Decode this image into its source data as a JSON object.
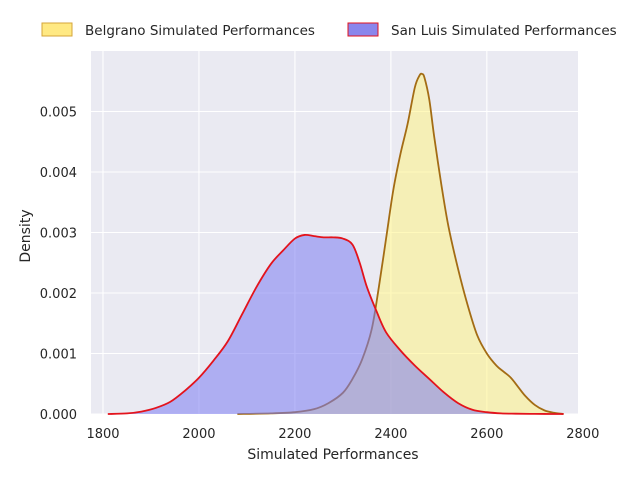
{
  "chart_data": {
    "type": "area",
    "title": "",
    "xlabel": "Simulated Performances",
    "ylabel": "Density",
    "xlim": [
      1775,
      2790
    ],
    "ylim": [
      0,
      0.006
    ],
    "xticks": [
      1800,
      2000,
      2200,
      2400,
      2600,
      2800
    ],
    "yticks": [
      0.0,
      0.001,
      0.002,
      0.003,
      0.004,
      0.005
    ],
    "ytick_labels": [
      "0.000",
      "0.001",
      "0.002",
      "0.003",
      "0.004",
      "0.005"
    ],
    "grid": true,
    "background": "#eaeaf2",
    "legend_position": "top",
    "series": [
      {
        "name": "Belgrano Simulated Performances",
        "fill_color": "#fff37a",
        "fill_opacity": 0.5,
        "line_color": "#a36c14",
        "legend_fill": "#ffe983",
        "legend_edge": "#d4a53a",
        "x": [
          2080,
          2150,
          2200,
          2240,
          2270,
          2300,
          2320,
          2340,
          2360,
          2375,
          2390,
          2405,
          2420,
          2435,
          2450,
          2460,
          2465,
          2470,
          2480,
          2490,
          2505,
          2520,
          2540,
          2560,
          2580,
          2600,
          2620,
          2635,
          2650,
          2665,
          2680,
          2700,
          2720,
          2740,
          2760
        ],
        "y": [
          0,
          1e-05,
          3e-05,
          8e-05,
          0.00018,
          0.00035,
          0.00058,
          0.0009,
          0.0014,
          0.0021,
          0.0029,
          0.0037,
          0.0043,
          0.0048,
          0.0054,
          0.0056,
          0.00562,
          0.00556,
          0.0052,
          0.0046,
          0.0038,
          0.0031,
          0.0024,
          0.0018,
          0.0013,
          0.001,
          0.0008,
          0.0007,
          0.0006,
          0.00045,
          0.0003,
          0.00015,
          6e-05,
          2e-05,
          0
        ]
      },
      {
        "name": "San Luis Simulated Performances",
        "fill_color": "#7b7bf2",
        "fill_opacity": 0.55,
        "line_color": "#e3131c",
        "legend_fill": "#8a86ec",
        "legend_edge": "#e3131c",
        "x": [
          1810,
          1850,
          1880,
          1910,
          1940,
          1970,
          2000,
          2030,
          2060,
          2090,
          2120,
          2150,
          2175,
          2200,
          2220,
          2240,
          2260,
          2280,
          2300,
          2320,
          2335,
          2350,
          2370,
          2390,
          2420,
          2450,
          2480,
          2510,
          2540,
          2570,
          2600,
          2630,
          2660,
          2690,
          2720,
          2760
        ],
        "y": [
          0,
          1e-05,
          4e-05,
          0.0001,
          0.0002,
          0.00038,
          0.0006,
          0.00088,
          0.0012,
          0.00165,
          0.0021,
          0.00248,
          0.0027,
          0.0029,
          0.00296,
          0.00294,
          0.00292,
          0.00292,
          0.0029,
          0.0028,
          0.0025,
          0.0021,
          0.0017,
          0.00135,
          0.00105,
          0.0008,
          0.00058,
          0.00036,
          0.00018,
          7e-05,
          3e-05,
          1e-05,
          5e-06,
          2e-06,
          1e-06,
          0
        ]
      }
    ]
  }
}
